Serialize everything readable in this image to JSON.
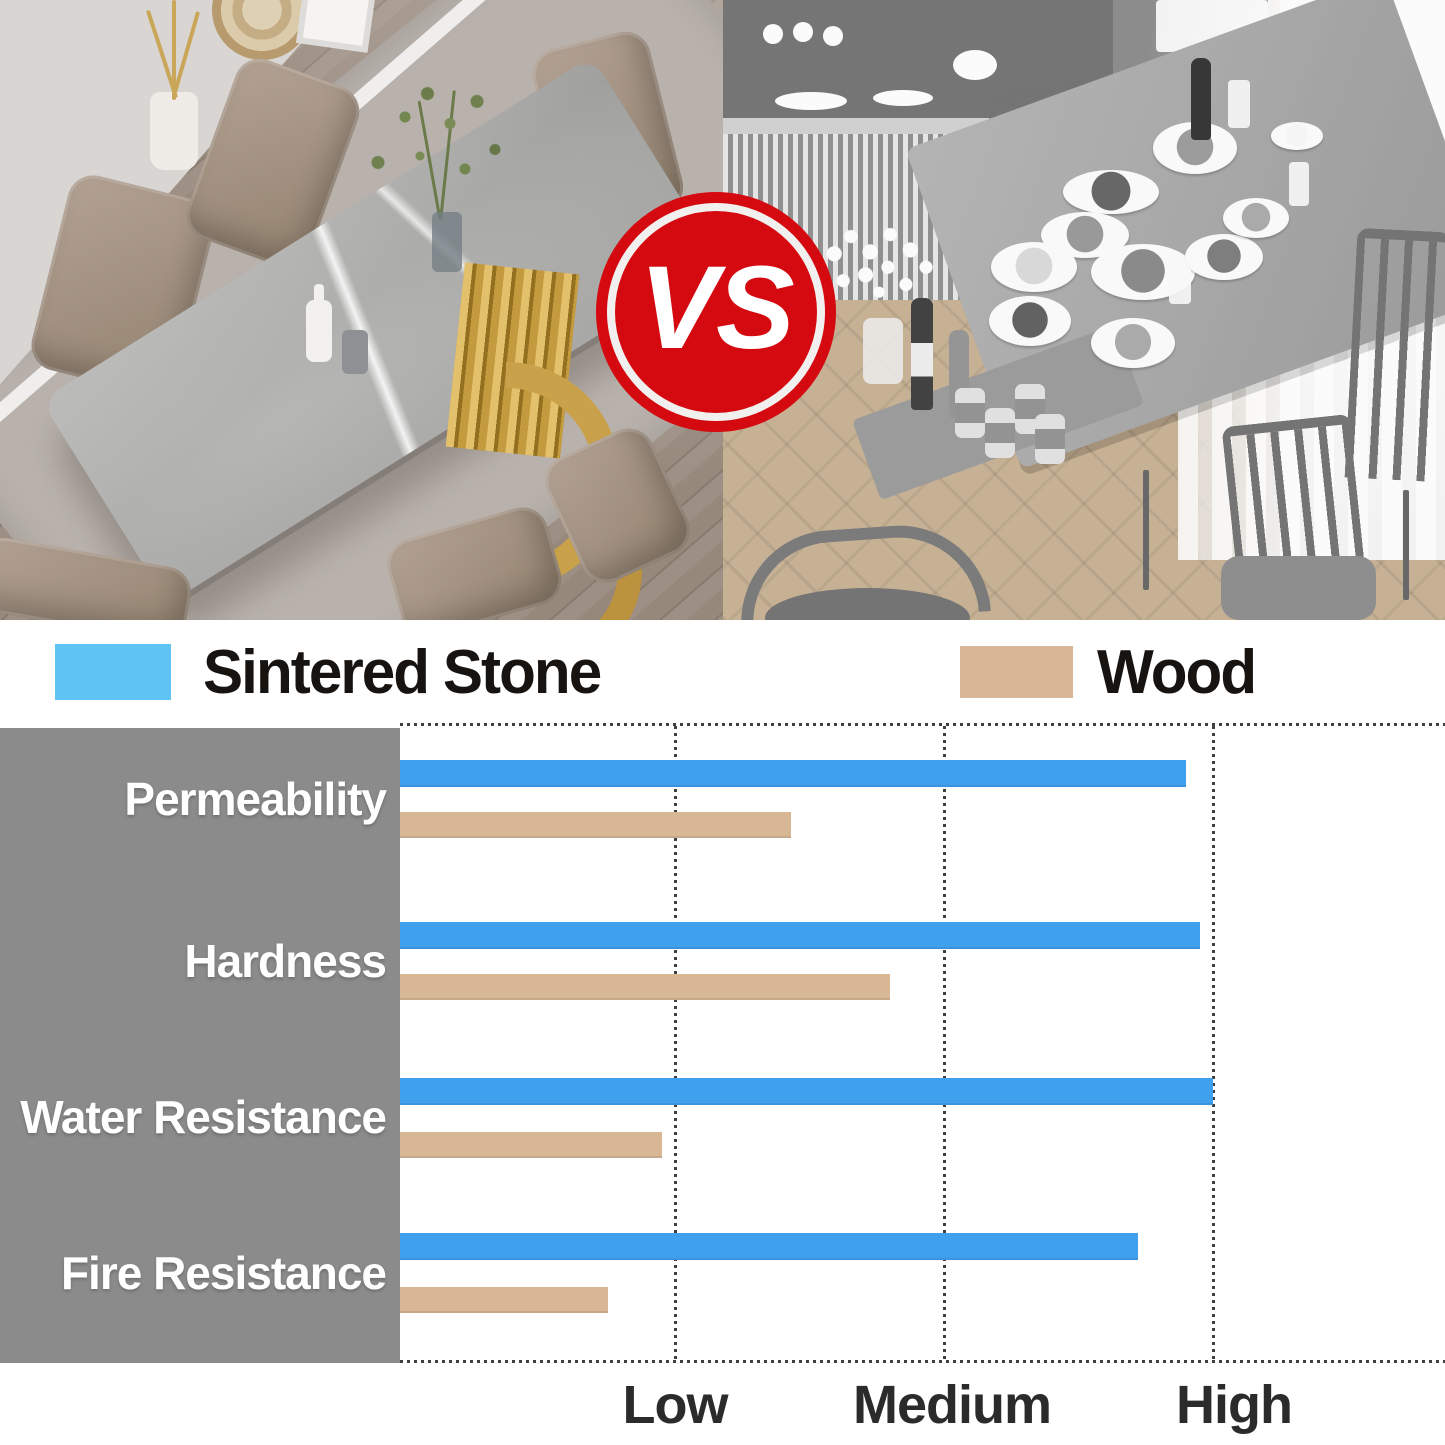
{
  "badge": {
    "label": "VS",
    "color": "#d40a10"
  },
  "legend": [
    {
      "label": "Sintered Stone",
      "color": "#5fc3f4"
    },
    {
      "label": "Wood",
      "color": "#d9b796"
    }
  ],
  "photos": {
    "left": {
      "subject": "sintered stone dining table, color photo"
    },
    "right": {
      "subject": "wood dining table, grayscale photo"
    }
  },
  "chart_data": {
    "type": "bar",
    "orientation": "horizontal",
    "categories": [
      "Permeability",
      "Hardness",
      "Water Resistance",
      "Fire Resistance"
    ],
    "series": [
      {
        "name": "Sintered Stone",
        "color": "#3fa0ee",
        "values": [
          2.9,
          2.95,
          3.0,
          2.72
        ]
      },
      {
        "name": "Wood",
        "color": "#d8b795",
        "values": [
          1.43,
          1.8,
          0.95,
          0.75
        ]
      }
    ],
    "x_ticks": [
      "Low",
      "Medium",
      "High"
    ],
    "x_tick_values": [
      1,
      2,
      3
    ],
    "xlim": [
      0,
      3.85
    ],
    "grid": "dotted vertical lines at ticks, dotted top and bottom axis lines",
    "legend_position": "above chart",
    "panel_color": "#8b8b8b",
    "background": "#ffffff"
  }
}
